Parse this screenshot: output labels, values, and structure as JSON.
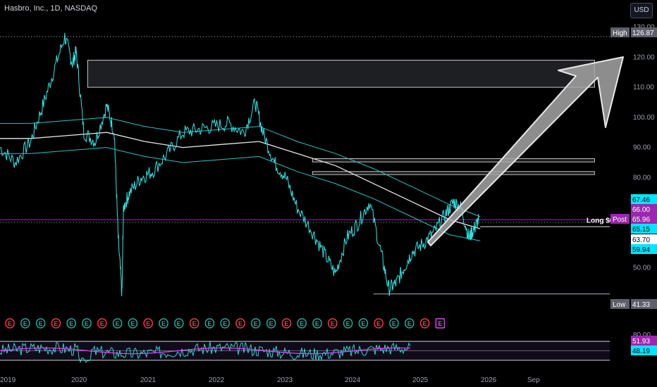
{
  "header": {
    "symbol": "Hasbro, Inc., 1D, NASDAQ",
    "currency": "USD"
  },
  "colors": {
    "background": "#000000",
    "price_line": "#2ee6e6",
    "ma_line": "#e6e6e6",
    "band_line": "#27c4c4",
    "arrow_fill": "#a6a6a6",
    "rsi_line": "#2ee6e6",
    "rsi_ma": "#e040fb",
    "high_low_label": "#5d606b",
    "label_66": "#9c27b0",
    "label_post": "#9c27b0",
    "label_cyan": "#00e5ff",
    "label_white": "#ffffff"
  },
  "chart_data": {
    "type": "line",
    "title": "Hasbro, Inc., 1D, NASDAQ",
    "xlabel": "",
    "ylabel": "",
    "x_ticks": [
      "2019",
      "2020",
      "2021",
      "2022",
      "2023",
      "2024",
      "2025",
      "2026",
      "Sep"
    ],
    "y_ticks": [
      130.0,
      120.0,
      110.0,
      100.0,
      90.0,
      80.0,
      50.0
    ],
    "ylim": [
      38,
      132
    ],
    "grid": false,
    "price_series": {
      "name": "",
      "x": [
        2018.6,
        2018.8,
        2019.0,
        2019.15,
        2019.3,
        2019.45,
        2019.55,
        2019.6,
        2019.7,
        2019.85,
        2020.0,
        2020.1,
        2020.15,
        2020.2,
        2020.22,
        2020.3,
        2020.45,
        2020.6,
        2020.8,
        2021.0,
        2021.2,
        2021.4,
        2021.6,
        2021.8,
        2021.95,
        2022.05,
        2022.2,
        2022.35,
        2022.5,
        2022.7,
        2022.85,
        2023.0,
        2023.15,
        2023.3,
        2023.45,
        2023.6,
        2023.7,
        2023.8,
        2023.9,
        2024.0,
        2024.15,
        2024.3,
        2024.45,
        2024.55,
        2024.65,
        2024.75,
        2024.82,
        2024.88
      ],
      "y": [
        90,
        85,
        92,
        103,
        115,
        126.87,
        118,
        122,
        95,
        92,
        104,
        95,
        60,
        41.33,
        70,
        75,
        80,
        82,
        88,
        95,
        96,
        97,
        98,
        95,
        105,
        95,
        85,
        80,
        70,
        62,
        55,
        48,
        60,
        65,
        72,
        55,
        43,
        45,
        50,
        55,
        58,
        62,
        68,
        72,
        70,
        60,
        63,
        66
      ]
    },
    "ma_series": {
      "x": [
        2018.6,
        2019.0,
        2019.5,
        2020.0,
        2020.5,
        2021.0,
        2021.5,
        2022.0,
        2022.5,
        2023.0,
        2023.5,
        2024.0,
        2024.5,
        2024.9
      ],
      "y": [
        93,
        93,
        94,
        95,
        92,
        90,
        91,
        92,
        88,
        84,
        78,
        72,
        66,
        63
      ]
    },
    "upper_band": {
      "x": [
        2018.6,
        2019.0,
        2019.5,
        2020.0,
        2020.5,
        2021.0,
        2021.5,
        2022.0,
        2022.5,
        2023.0,
        2023.5,
        2024.0,
        2024.5,
        2024.9
      ],
      "y": [
        98,
        98,
        99,
        100,
        97,
        95,
        96,
        97,
        92,
        88,
        83,
        77,
        71,
        67
      ]
    },
    "lower_band": {
      "x": [
        2018.6,
        2019.0,
        2019.5,
        2020.0,
        2020.5,
        2021.0,
        2021.5,
        2022.0,
        2022.5,
        2023.0,
        2023.5,
        2024.0,
        2024.5,
        2024.9
      ],
      "y": [
        88,
        88,
        89,
        90,
        87,
        85,
        86,
        87,
        82,
        78,
        73,
        67,
        61,
        59
      ]
    },
    "levels": {
      "high": 126.87,
      "low": 41.33,
      "resistance_zone": [
        110.0,
        119.0
      ],
      "resistance_a": [
        85.2,
        86.3
      ],
      "resistance_b": [
        81.0,
        82.0
      ],
      "support_line": 63.7,
      "current": 65.15
    },
    "price_labels": [
      {
        "text": "High",
        "value": "126.87"
      },
      {
        "text": "",
        "value": "67.46"
      },
      {
        "text": "",
        "value": "66.00"
      },
      {
        "text": "Post",
        "value": "65.96"
      },
      {
        "text": "",
        "value": "65.15"
      },
      {
        "text": "",
        "value": "63.70"
      },
      {
        "text": "",
        "value": "59.94"
      },
      {
        "text": "Low",
        "value": "41.33"
      }
    ],
    "annotation": "Long $66.00",
    "earnings_markers": [
      "E",
      "E",
      "E",
      "E",
      "E",
      "E",
      "E",
      "E",
      "E",
      "E",
      "E",
      "E",
      "E",
      "E",
      "E",
      "E",
      "E",
      "E",
      "E",
      "E",
      "E",
      "E",
      "E",
      "E",
      "E",
      "E",
      "E",
      "E",
      "E"
    ],
    "rsi": {
      "y_ticks": [
        80.0
      ],
      "labels": [
        "51.93",
        "48.19"
      ],
      "upper": 70,
      "lower": 30
    }
  }
}
